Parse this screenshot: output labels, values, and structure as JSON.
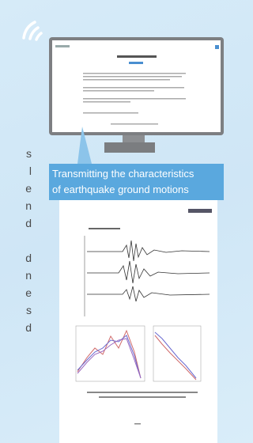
{
  "left_text_fragments": [
    "s",
    "l",
    "e",
    "n",
    "d",
    "d",
    "n",
    "e",
    "s",
    "d"
  ],
  "banner": {
    "line1": "Transmitting the characteristics",
    "line2": "of earthquake ground motions"
  }
}
